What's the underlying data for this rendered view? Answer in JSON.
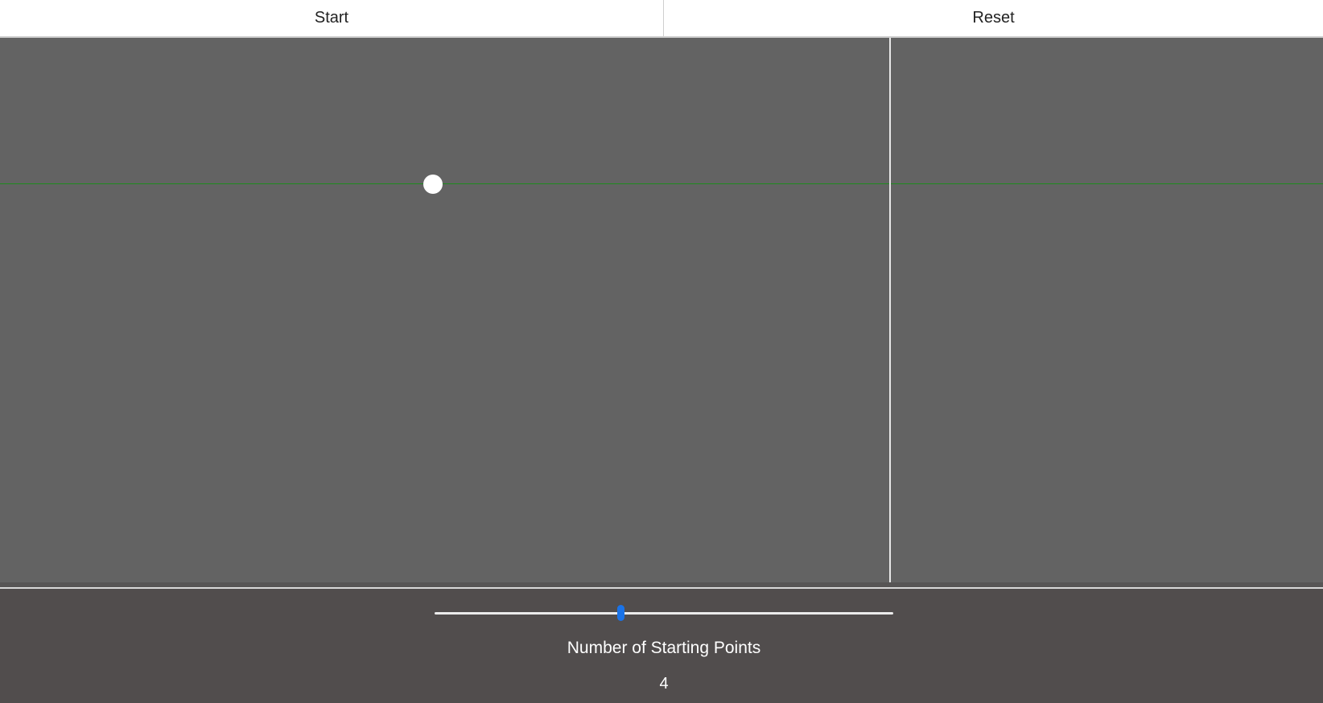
{
  "toolbar": {
    "start_label": "Start",
    "reset_label": "Reset"
  },
  "slider": {
    "label": "Number of Starting Points",
    "value": "4",
    "fraction": 0.405,
    "accent_color": "#1a73e8"
  },
  "colors": {
    "canvas_bg": "#636363",
    "horizontal_line": "#1e8a1e",
    "vertical_line": "#e8e8e8",
    "point": "#ffffff",
    "controls_bg": "#514d4d"
  }
}
